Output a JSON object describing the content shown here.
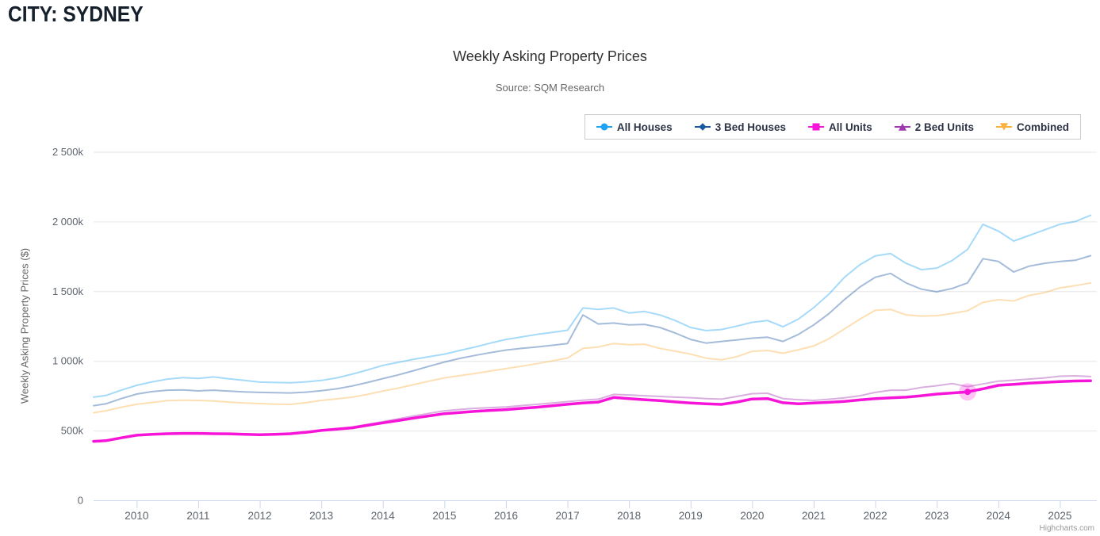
{
  "header": {
    "title": "CITY: SYDNEY"
  },
  "credit": "Highcharts.com",
  "chart_data": {
    "type": "line",
    "title": "Weekly Asking Property Prices",
    "subtitle": "Source: SQM Research",
    "ylabel": "Weekly Asking Property Prices ($)",
    "xlim": [
      2009.3,
      2025.6
    ],
    "ylim": [
      0,
      2500
    ],
    "yticks": [
      0,
      500,
      1000,
      1500,
      2000,
      2500
    ],
    "ytick_labels": [
      "0",
      "500k",
      "1 000k",
      "1 500k",
      "2 000k",
      "2 500k"
    ],
    "xticks": [
      2010,
      2011,
      2012,
      2013,
      2014,
      2015,
      2016,
      2017,
      2018,
      2019,
      2020,
      2021,
      2022,
      2023,
      2024,
      2025
    ],
    "grid": "horizontal",
    "legend_position": "top-right",
    "units": "thousands of dollars per week (k$)",
    "x": [
      2009.3,
      2009.5,
      2009.75,
      2010,
      2010.25,
      2010.5,
      2010.75,
      2011,
      2011.25,
      2011.5,
      2011.75,
      2012,
      2012.25,
      2012.5,
      2012.75,
      2013,
      2013.25,
      2013.5,
      2013.75,
      2014,
      2014.25,
      2014.5,
      2014.75,
      2015,
      2015.25,
      2015.5,
      2015.75,
      2016,
      2016.25,
      2016.5,
      2016.75,
      2017,
      2017.25,
      2017.5,
      2017.75,
      2018,
      2018.25,
      2018.5,
      2018.75,
      2019,
      2019.25,
      2019.5,
      2019.75,
      2020,
      2020.25,
      2020.5,
      2020.75,
      2021,
      2021.25,
      2021.5,
      2021.75,
      2022,
      2022.25,
      2022.5,
      2022.75,
      2023,
      2023.25,
      2023.5,
      2023.75,
      2024,
      2024.25,
      2024.5,
      2024.75,
      2025,
      2025.25,
      2025.5
    ],
    "series": [
      {
        "name": "All Houses",
        "color": "#1ea2f1",
        "marker": "circle",
        "line_width": 2,
        "opacity": 0.4,
        "state": "inactive",
        "values": [
          740,
          752,
          790,
          825,
          850,
          870,
          880,
          875,
          885,
          872,
          860,
          848,
          845,
          843,
          850,
          860,
          878,
          905,
          935,
          968,
          990,
          1012,
          1030,
          1049,
          1075,
          1100,
          1128,
          1154,
          1172,
          1190,
          1205,
          1220,
          1380,
          1370,
          1380,
          1344,
          1355,
          1330,
          1290,
          1240,
          1218,
          1225,
          1250,
          1277,
          1290,
          1245,
          1300,
          1382,
          1480,
          1600,
          1690,
          1753,
          1770,
          1700,
          1655,
          1666,
          1720,
          1800,
          1980,
          1932,
          1860,
          1900,
          1940,
          1980,
          2000,
          2045
        ]
      },
      {
        "name": "3 Bed Houses",
        "color": "#1b579f",
        "marker": "diamond",
        "line_width": 2,
        "opacity": 0.4,
        "state": "inactive",
        "values": [
          679,
          692,
          730,
          762,
          780,
          790,
          792,
          785,
          790,
          783,
          778,
          774,
          772,
          770,
          776,
          786,
          800,
          820,
          845,
          873,
          900,
          930,
          962,
          992,
          1018,
          1040,
          1060,
          1078,
          1090,
          1100,
          1112,
          1125,
          1330,
          1265,
          1272,
          1258,
          1262,
          1240,
          1200,
          1154,
          1128,
          1140,
          1150,
          1163,
          1170,
          1140,
          1190,
          1258,
          1340,
          1440,
          1530,
          1600,
          1628,
          1560,
          1515,
          1496,
          1520,
          1560,
          1733,
          1714,
          1638,
          1680,
          1700,
          1714,
          1722,
          1755
        ]
      },
      {
        "name": "All Units",
        "color": "#f614d9",
        "marker": "square",
        "line_width": 3.5,
        "opacity": 1,
        "state": "hover",
        "values": [
          423,
          428,
          448,
          467,
          473,
          478,
          480,
          480,
          478,
          477,
          474,
          471,
          474,
          478,
          488,
          501,
          510,
          520,
          538,
          556,
          572,
          590,
          606,
          622,
          630,
          638,
          645,
          651,
          660,
          668,
          678,
          689,
          698,
          705,
          738,
          730,
          722,
          715,
          706,
          698,
          692,
          688,
          705,
          727,
          730,
          700,
          693,
          698,
          703,
          710,
          720,
          729,
          735,
          740,
          750,
          762,
          770,
          778,
          800,
          825,
          832,
          840,
          846,
          852,
          856,
          858
        ]
      },
      {
        "name": "2 Bed Units",
        "color": "#a038b0",
        "marker": "triangle-up",
        "line_width": 2,
        "opacity": 0.4,
        "state": "inactive",
        "values": [
          420,
          425,
          445,
          465,
          471,
          476,
          478,
          478,
          476,
          475,
          472,
          470,
          474,
          480,
          490,
          503,
          514,
          526,
          545,
          565,
          585,
          605,
          624,
          642,
          652,
          660,
          665,
          670,
          680,
          688,
          698,
          708,
          718,
          726,
          760,
          756,
          750,
          745,
          740,
          736,
          730,
          726,
          745,
          765,
          768,
          730,
          722,
          717,
          725,
          735,
          750,
          774,
          790,
          790,
          810,
          822,
          838,
          815,
          835,
          855,
          862,
          870,
          878,
          890,
          893,
          888
        ]
      },
      {
        "name": "Combined",
        "color": "#fbb040",
        "marker": "triangle-down",
        "line_width": 2,
        "opacity": 0.4,
        "state": "inactive",
        "values": [
          628,
          642,
          668,
          689,
          702,
          715,
          718,
          717,
          712,
          705,
          698,
          694,
          690,
          688,
          700,
          717,
          728,
          740,
          760,
          784,
          805,
          830,
          855,
          878,
          895,
          910,
          928,
          945,
          962,
          980,
          1000,
          1021,
          1090,
          1100,
          1125,
          1116,
          1120,
          1090,
          1070,
          1049,
          1020,
          1008,
          1030,
          1069,
          1075,
          1055,
          1080,
          1107,
          1160,
          1230,
          1300,
          1363,
          1370,
          1330,
          1322,
          1325,
          1340,
          1360,
          1420,
          1439,
          1430,
          1470,
          1490,
          1524,
          1540,
          1560
        ]
      }
    ],
    "hover_point": {
      "series": "All Units",
      "x": 2023.5,
      "value": 778
    }
  }
}
